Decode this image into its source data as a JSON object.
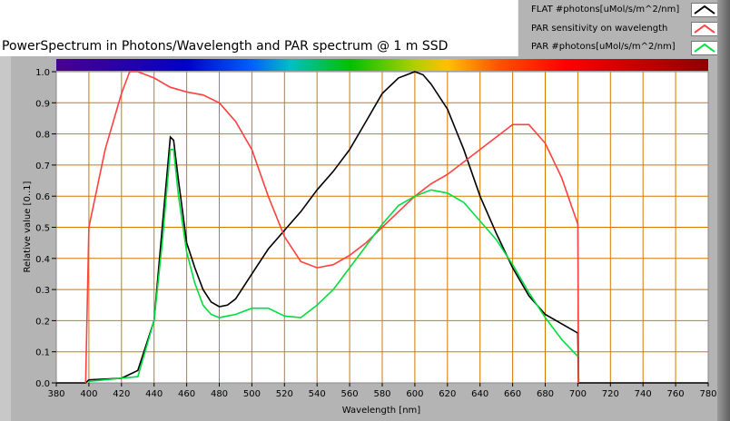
{
  "chart_data": {
    "type": "line",
    "title": "PowerSpectrum in Photons/Wavelength and PAR spectrum @ 1 m SSD",
    "xlabel": "Wavelength [nm]",
    "ylabel": "Relative value [0..1]",
    "xlim": [
      380,
      780
    ],
    "ylim": [
      0,
      1
    ],
    "xticks": [
      "380",
      "400",
      "420",
      "440",
      "460",
      "480",
      "500",
      "520",
      "540",
      "560",
      "580",
      "600",
      "620",
      "640",
      "660",
      "680",
      "700",
      "720",
      "740",
      "760",
      "780"
    ],
    "yticks": [
      "0.0",
      "0.1",
      "0.2",
      "0.3",
      "0.4",
      "0.5",
      "0.6",
      "0.7",
      "0.8",
      "0.9",
      "1.0"
    ],
    "grid": true,
    "legend": "top-right",
    "series": [
      {
        "name": "FLAT #photons[uMol/s/m^2/nm]",
        "color": "#000000",
        "points": [
          [
            380,
            0
          ],
          [
            398,
            0
          ],
          [
            400,
            0.01
          ],
          [
            420,
            0.015
          ],
          [
            430,
            0.04
          ],
          [
            440,
            0.2
          ],
          [
            445,
            0.5
          ],
          [
            450,
            0.79
          ],
          [
            452,
            0.78
          ],
          [
            455,
            0.65
          ],
          [
            460,
            0.45
          ],
          [
            465,
            0.37
          ],
          [
            470,
            0.3
          ],
          [
            475,
            0.26
          ],
          [
            480,
            0.245
          ],
          [
            485,
            0.25
          ],
          [
            490,
            0.27
          ],
          [
            500,
            0.35
          ],
          [
            510,
            0.43
          ],
          [
            520,
            0.49
          ],
          [
            530,
            0.55
          ],
          [
            540,
            0.62
          ],
          [
            550,
            0.68
          ],
          [
            560,
            0.75
          ],
          [
            570,
            0.84
          ],
          [
            580,
            0.93
          ],
          [
            590,
            0.98
          ],
          [
            600,
            1.0
          ],
          [
            605,
            0.99
          ],
          [
            610,
            0.96
          ],
          [
            620,
            0.88
          ],
          [
            630,
            0.75
          ],
          [
            640,
            0.6
          ],
          [
            650,
            0.48
          ],
          [
            660,
            0.37
          ],
          [
            670,
            0.28
          ],
          [
            680,
            0.22
          ],
          [
            690,
            0.19
          ],
          [
            700,
            0.16
          ],
          [
            700.5,
            0
          ],
          [
            780,
            0
          ]
        ]
      },
      {
        "name": "PAR sensitivity on wavelength",
        "color": "#ff4040",
        "points": [
          [
            398,
            0
          ],
          [
            399,
            0.25
          ],
          [
            400,
            0.5
          ],
          [
            410,
            0.75
          ],
          [
            420,
            0.93
          ],
          [
            425,
            1.0
          ],
          [
            430,
            1.0
          ],
          [
            440,
            0.98
          ],
          [
            450,
            0.95
          ],
          [
            460,
            0.935
          ],
          [
            470,
            0.925
          ],
          [
            480,
            0.9
          ],
          [
            490,
            0.84
          ],
          [
            500,
            0.75
          ],
          [
            510,
            0.6
          ],
          [
            520,
            0.47
          ],
          [
            530,
            0.39
          ],
          [
            540,
            0.37
          ],
          [
            550,
            0.38
          ],
          [
            560,
            0.41
          ],
          [
            570,
            0.45
          ],
          [
            580,
            0.5
          ],
          [
            590,
            0.55
          ],
          [
            600,
            0.6
          ],
          [
            610,
            0.64
          ],
          [
            620,
            0.67
          ],
          [
            630,
            0.71
          ],
          [
            640,
            0.75
          ],
          [
            650,
            0.79
          ],
          [
            660,
            0.83
          ],
          [
            670,
            0.83
          ],
          [
            680,
            0.77
          ],
          [
            690,
            0.66
          ],
          [
            700,
            0.51
          ],
          [
            700.5,
            0
          ]
        ]
      },
      {
        "name": "PAR #photons[uMol/s/m^2/nm]",
        "color": "#00dd40",
        "points": [
          [
            400,
            0.005
          ],
          [
            430,
            0.02
          ],
          [
            440,
            0.2
          ],
          [
            445,
            0.45
          ],
          [
            450,
            0.75
          ],
          [
            452,
            0.75
          ],
          [
            455,
            0.6
          ],
          [
            460,
            0.42
          ],
          [
            465,
            0.32
          ],
          [
            470,
            0.25
          ],
          [
            475,
            0.22
          ],
          [
            480,
            0.21
          ],
          [
            490,
            0.22
          ],
          [
            500,
            0.24
          ],
          [
            510,
            0.24
          ],
          [
            520,
            0.215
          ],
          [
            530,
            0.21
          ],
          [
            540,
            0.25
          ],
          [
            550,
            0.3
          ],
          [
            560,
            0.37
          ],
          [
            570,
            0.44
          ],
          [
            580,
            0.51
          ],
          [
            590,
            0.57
          ],
          [
            600,
            0.6
          ],
          [
            610,
            0.62
          ],
          [
            620,
            0.61
          ],
          [
            630,
            0.58
          ],
          [
            640,
            0.52
          ],
          [
            650,
            0.46
          ],
          [
            660,
            0.38
          ],
          [
            670,
            0.29
          ],
          [
            680,
            0.21
          ],
          [
            690,
            0.14
          ],
          [
            700,
            0.085
          ]
        ]
      }
    ]
  }
}
